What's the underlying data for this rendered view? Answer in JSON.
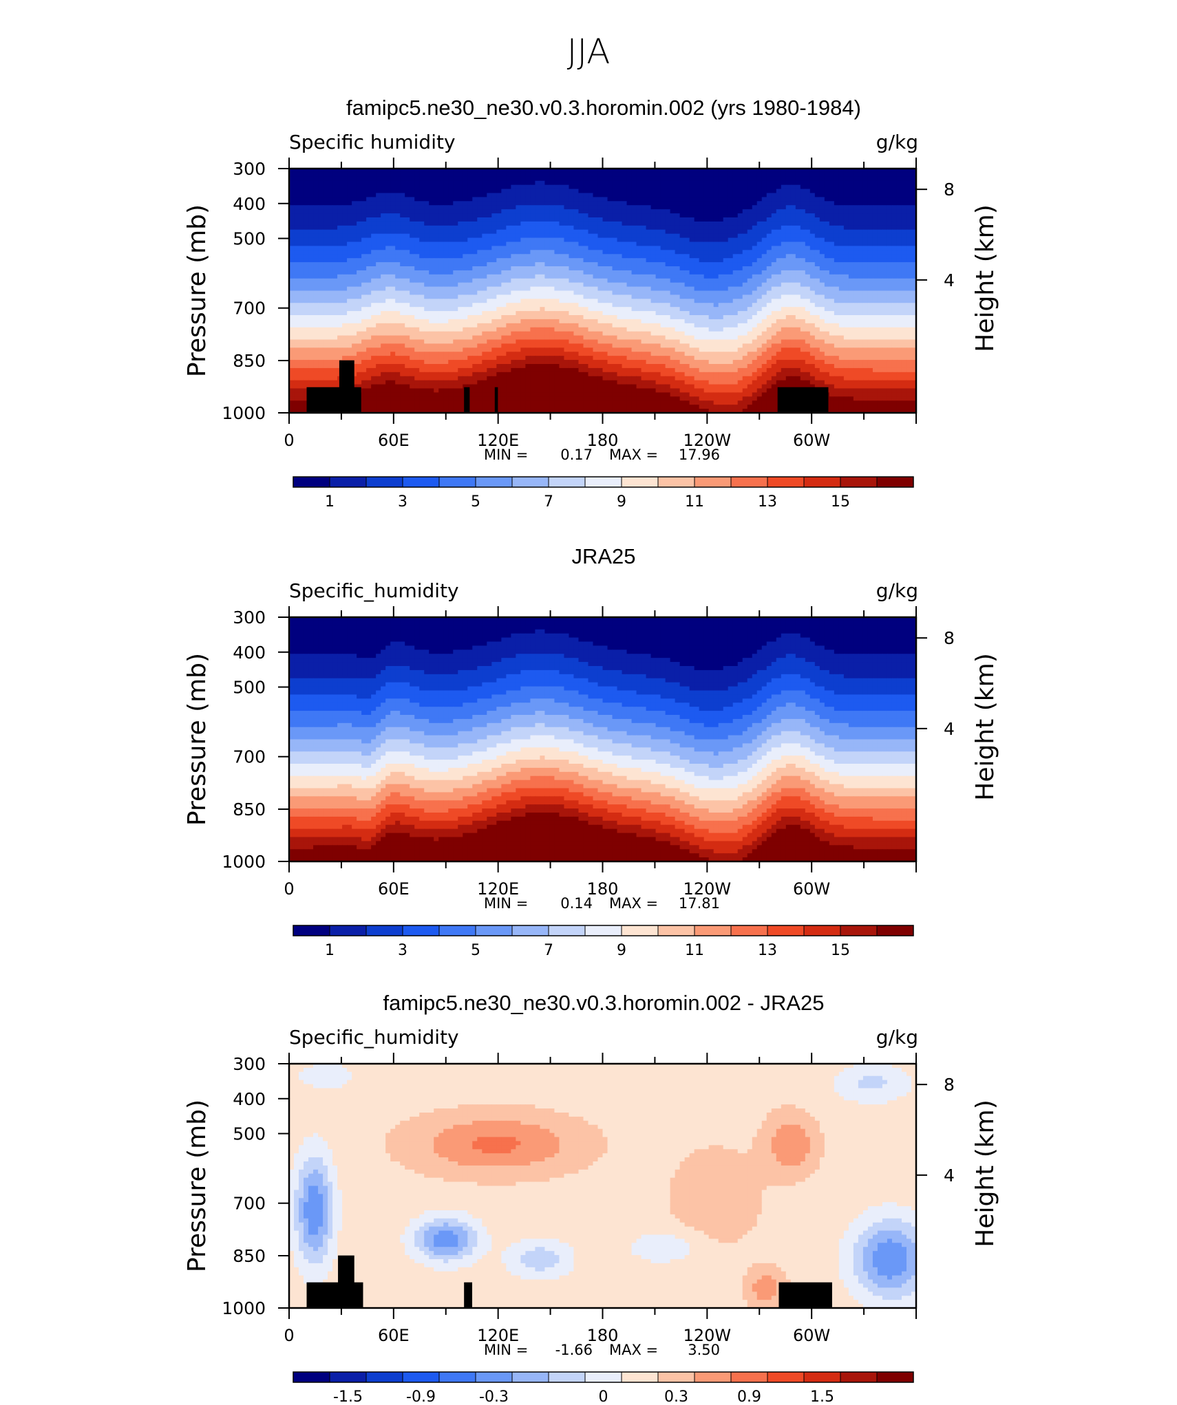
{
  "figure_title": "JJA",
  "chart_data": [
    {
      "type": "heatmap",
      "title": "famipc5.ne30_ne30.v0.3.horomin.002 (yrs 1980-1984)",
      "left_label": "Specific humidity",
      "units": "g/kg",
      "ylabel": "Pressure (mb)",
      "ylabel_right": "Height (km)",
      "x_ticks": [
        "0",
        "60E",
        "120E",
        "180",
        "120W",
        "60W"
      ],
      "y_ticks": [
        "300",
        "400",
        "500",
        "700",
        "850",
        "1000"
      ],
      "y_right_ticks": [
        "8",
        "4"
      ],
      "stats": {
        "min_label": "MIN =",
        "min": "0.17",
        "max_label": "MAX =",
        "max": "17.96"
      },
      "colorbar_ticks": [
        "1",
        "3",
        "5",
        "7",
        "9",
        "11",
        "13",
        "15"
      ],
      "colorbar_colors": [
        "#00007f",
        "#0a1fa8",
        "#0d3ecf",
        "#1d5af0",
        "#3f78f5",
        "#6a98f7",
        "#97b6f8",
        "#c3d4f9",
        "#e9eefb",
        "#fde4d2",
        "#fcc3a6",
        "#fa9a76",
        "#f7714d",
        "#ef4a26",
        "#d42c12",
        "#a8150a",
        "#7f0000"
      ],
      "ylim": [
        1000,
        300
      ],
      "xlim": [
        0,
        360
      ],
      "grid": false,
      "masking_terrain": true
    },
    {
      "type": "heatmap",
      "title": "JRA25",
      "left_label": "Specific_humidity",
      "units": "g/kg",
      "ylabel": "Pressure (mb)",
      "ylabel_right": "Height (km)",
      "x_ticks": [
        "0",
        "60E",
        "120E",
        "180",
        "120W",
        "60W"
      ],
      "y_ticks": [
        "300",
        "400",
        "500",
        "700",
        "850",
        "1000"
      ],
      "y_right_ticks": [
        "8",
        "4"
      ],
      "stats": {
        "min_label": "MIN =",
        "min": "0.14",
        "max_label": "MAX =",
        "max": "17.81"
      },
      "colorbar_ticks": [
        "1",
        "3",
        "5",
        "7",
        "9",
        "11",
        "13",
        "15"
      ],
      "colorbar_colors": [
        "#00007f",
        "#0a1fa8",
        "#0d3ecf",
        "#1d5af0",
        "#3f78f5",
        "#6a98f7",
        "#97b6f8",
        "#c3d4f9",
        "#e9eefb",
        "#fde4d2",
        "#fcc3a6",
        "#fa9a76",
        "#f7714d",
        "#ef4a26",
        "#d42c12",
        "#a8150a",
        "#7f0000"
      ],
      "ylim": [
        1000,
        300
      ],
      "xlim": [
        0,
        360
      ],
      "grid": false,
      "masking_terrain": false
    },
    {
      "type": "heatmap",
      "title": "famipc5.ne30_ne30.v0.3.horomin.002 - JRA25",
      "left_label": "Specific_humidity",
      "units": "g/kg",
      "ylabel": "Pressure (mb)",
      "ylabel_right": "Height (km)",
      "x_ticks": [
        "0",
        "60E",
        "120E",
        "180",
        "120W",
        "60W"
      ],
      "y_ticks": [
        "300",
        "400",
        "500",
        "700",
        "850",
        "1000"
      ],
      "y_right_ticks": [
        "8",
        "4"
      ],
      "stats": {
        "min_label": "MIN =",
        "min": "-1.66",
        "max_label": "MAX =",
        "max": "3.50"
      },
      "colorbar_ticks": [
        "-1.5",
        "-0.9",
        "-0.3",
        "0",
        "0.3",
        "0.9",
        "1.5"
      ],
      "colorbar_colors": [
        "#00007f",
        "#0a1fa8",
        "#0d3ecf",
        "#1d5af0",
        "#3f78f5",
        "#6a98f7",
        "#97b6f8",
        "#c3d4f9",
        "#e9eefb",
        "#fde4d2",
        "#fcc3a6",
        "#fa9a76",
        "#f7714d",
        "#ef4a26",
        "#d42c12",
        "#a8150a",
        "#7f0000"
      ],
      "ylim": [
        1000,
        300
      ],
      "xlim": [
        0,
        360
      ],
      "grid": false,
      "masking_terrain": true
    }
  ]
}
